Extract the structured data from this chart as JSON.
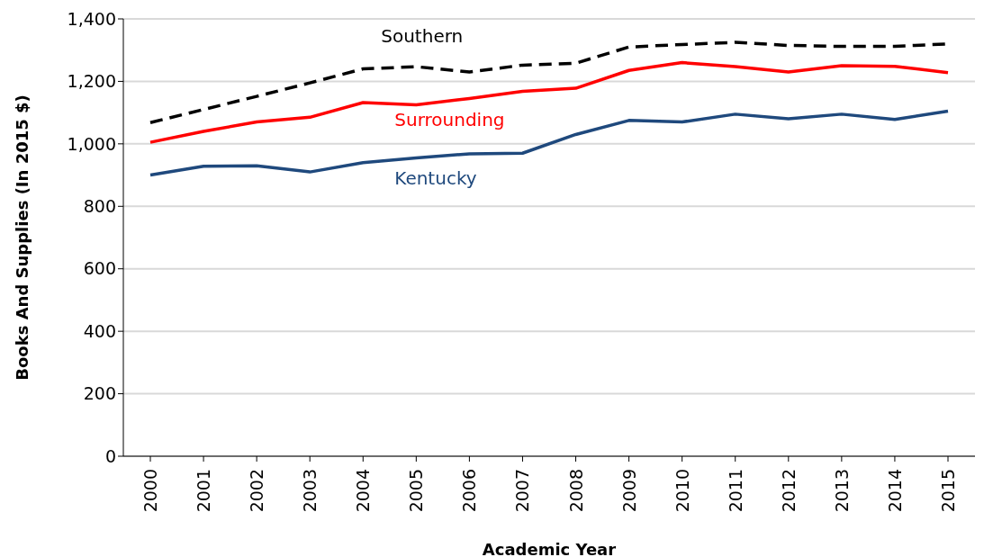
{
  "chart_data": {
    "type": "line",
    "xlabel": "Academic Year",
    "ylabel": "Books And Supplies (In 2015 $)",
    "categories": [
      "2000",
      "2001",
      "2002",
      "2003",
      "2004",
      "2005",
      "2006",
      "2007",
      "2008",
      "2009",
      "2010",
      "2011",
      "2012",
      "2013",
      "2014",
      "2015"
    ],
    "series": [
      {
        "name": "Southern",
        "color": "#000000",
        "line_style": "dashed",
        "values": [
          1068,
          1110,
          1152,
          1195,
          1240,
          1247,
          1230,
          1252,
          1258,
          1310,
          1318,
          1325,
          1315,
          1312,
          1312,
          1320
        ]
      },
      {
        "name": "Surrounding",
        "color": "#ff0000",
        "line_style": "solid",
        "values": [
          1005,
          1040,
          1070,
          1085,
          1132,
          1125,
          1145,
          1168,
          1178,
          1235,
          1260,
          1247,
          1230,
          1250,
          1248,
          1228
        ]
      },
      {
        "name": "Kentucky",
        "color": "#1f497d",
        "line_style": "solid",
        "values": [
          900,
          928,
          930,
          910,
          940,
          955,
          968,
          970,
          1030,
          1075,
          1070,
          1095,
          1080,
          1095,
          1078,
          1105
        ]
      }
    ],
    "ylim": [
      0,
      1400
    ],
    "yticks": [
      0,
      200,
      400,
      600,
      800,
      {
        "value": 1000,
        "label": "1,000"
      },
      {
        "value": 1200,
        "label": "1,200"
      },
      {
        "value": 1400,
        "label": "1,400"
      }
    ],
    "grid": "y",
    "marker": "none"
  }
}
